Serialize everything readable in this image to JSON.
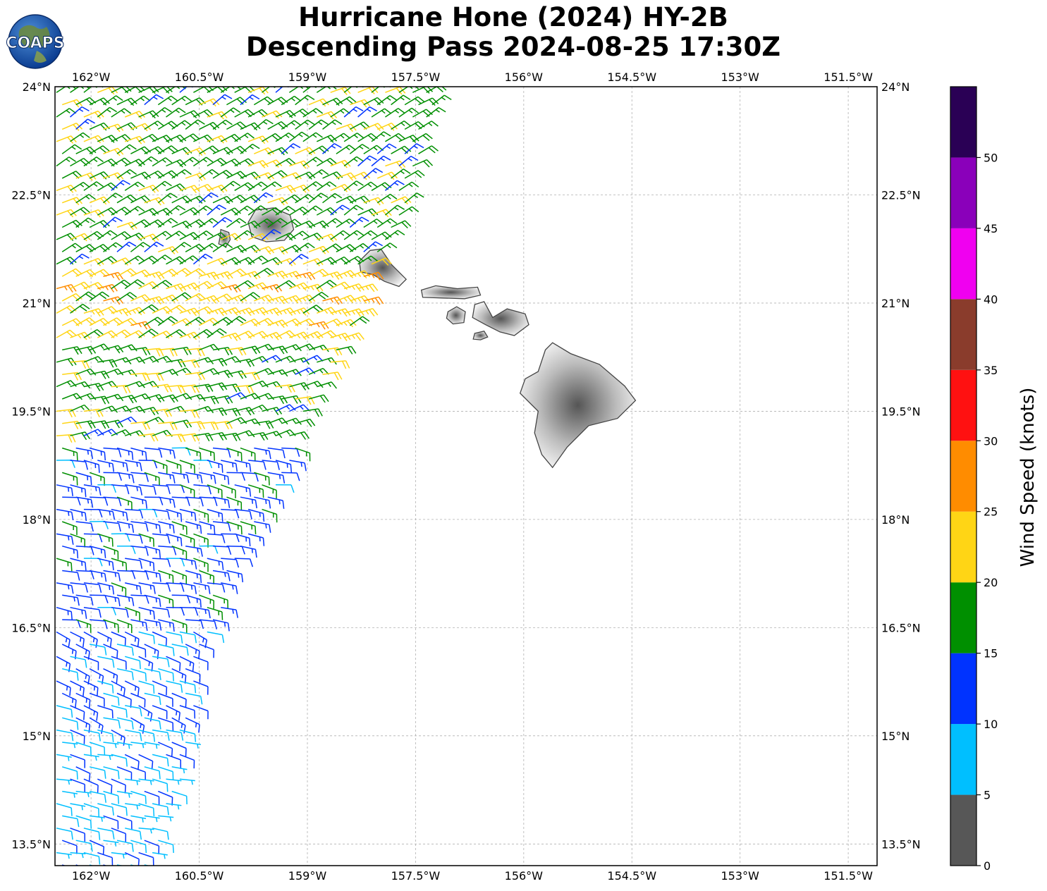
{
  "title": {
    "line1": "Hurricane Hone (2024) HY-2B",
    "line2": "Descending Pass 2024-08-25 17:30Z"
  },
  "logo": {
    "text": "COAPS"
  },
  "map": {
    "lon_range": [
      -162.5,
      -151.1
    ],
    "lat_range": [
      13.2,
      24.0
    ],
    "lon_ticks": [
      -162,
      -160.5,
      -159,
      -157.5,
      -156,
      -154.5,
      -153,
      -151.5
    ],
    "lon_tick_labels": [
      "162°W",
      "160.5°W",
      "159°W",
      "157.5°W",
      "156°W",
      "154.5°W",
      "153°W",
      "151.5°W"
    ],
    "lat_ticks": [
      24,
      22.5,
      21,
      19.5,
      18,
      16.5,
      15,
      13.5
    ],
    "lat_tick_labels": [
      "24°N",
      "22.5°N",
      "21°N",
      "19.5°N",
      "18°N",
      "16.5°N",
      "15°N",
      "13.5°N"
    ],
    "grid": true,
    "land_color": "#e6e6e6",
    "coast_color": "#444444",
    "islands": [
      {
        "name": "niihau",
        "lon": -160.15,
        "lat": 21.9
      },
      {
        "name": "kauai",
        "lon": -159.52,
        "lat": 22.07
      },
      {
        "name": "oahu",
        "lon": -157.98,
        "lat": 21.48
      },
      {
        "name": "molokai",
        "lon": -157.02,
        "lat": 21.14
      },
      {
        "name": "lanai",
        "lon": -156.93,
        "lat": 20.83
      },
      {
        "name": "maui",
        "lon": -156.33,
        "lat": 20.8
      },
      {
        "name": "kahoolawe",
        "lon": -156.6,
        "lat": 20.55
      },
      {
        "name": "hawaii",
        "lon": -155.5,
        "lat": 19.6
      }
    ]
  },
  "wind_field": {
    "swath_east_edge": [
      [
        24.0,
        -157.2
      ],
      [
        22.5,
        -157.6
      ],
      [
        21.0,
        -158.2
      ],
      [
        19.5,
        -158.9
      ],
      [
        18.5,
        -159.4
      ],
      [
        17.0,
        -160.1
      ],
      [
        16.0,
        -160.5
      ],
      [
        14.5,
        -160.7
      ],
      [
        13.2,
        -161.2
      ]
    ],
    "swath_west_lon": -162.5,
    "zones": [
      {
        "lat_min": 21.5,
        "lat_max": 24.0,
        "speed_kt": 18,
        "direction_deg": 60
      },
      {
        "lat_min": 20.5,
        "lat_max": 21.5,
        "speed_kt": 22,
        "direction_deg": 65
      },
      {
        "lat_min": 19.0,
        "lat_max": 20.5,
        "speed_kt": 18,
        "direction_deg": 75
      },
      {
        "lat_min": 16.5,
        "lat_max": 19.0,
        "speed_kt": 13,
        "direction_deg": 100
      },
      {
        "lat_min": 15.0,
        "lat_max": 16.5,
        "speed_kt": 11,
        "direction_deg": 110
      },
      {
        "lat_min": 13.2,
        "lat_max": 15.0,
        "speed_kt": 9,
        "direction_deg": 105
      }
    ]
  },
  "colorbar": {
    "label": "Wind Speed (knots)",
    "bounds": [
      0,
      5,
      10,
      15,
      20,
      25,
      30,
      35,
      40,
      45,
      50,
      55
    ],
    "tick_labels": [
      "0",
      "5",
      "10",
      "15",
      "20",
      "25",
      "30",
      "35",
      "40",
      "45",
      "50"
    ],
    "colors": [
      "#575757",
      "#00bfff",
      "#0033ff",
      "#008f00",
      "#ffd515",
      "#ff8c00",
      "#ff1111",
      "#8a3c2c",
      "#f000f0",
      "#8a00ba",
      "#2a0055"
    ]
  }
}
